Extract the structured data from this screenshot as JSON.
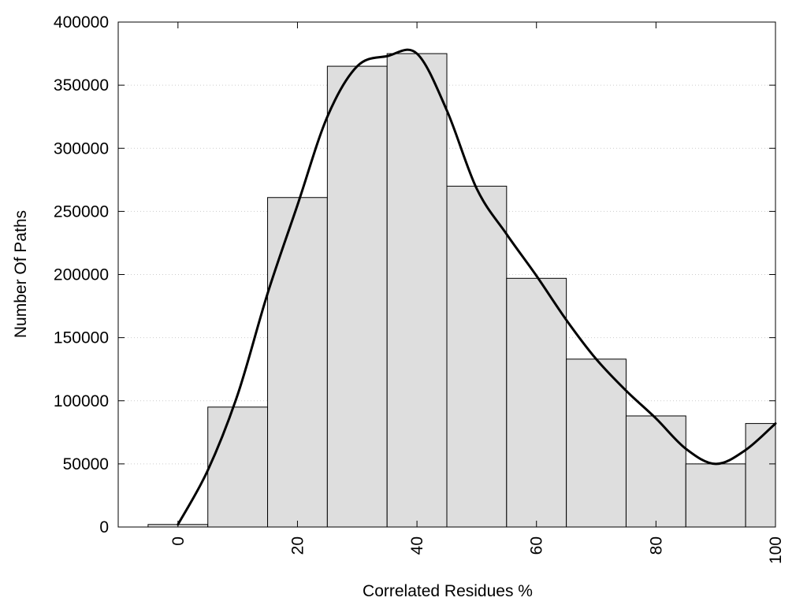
{
  "chart_data": {
    "type": "bar",
    "xlabel": "Correlated Residues %",
    "ylabel": "Number Of Paths",
    "xlim": [
      -10,
      100
    ],
    "ylim": [
      0,
      400000
    ],
    "x_ticks": [
      0,
      20,
      40,
      60,
      80,
      100
    ],
    "x_tick_labels": [
      "0",
      "20",
      "40",
      "60",
      "80",
      "100"
    ],
    "y_ticks": [
      0,
      50000,
      100000,
      150000,
      200000,
      250000,
      300000,
      350000,
      400000
    ],
    "y_tick_labels": [
      "0",
      "50000",
      "100000",
      "150000",
      "200000",
      "250000",
      "300000",
      "350000",
      "400000"
    ],
    "grid": "horizontal dotted",
    "bars": [
      {
        "x": 0,
        "value": 2000
      },
      {
        "x": 10,
        "value": 95000
      },
      {
        "x": 20,
        "value": 261000
      },
      {
        "x": 30,
        "value": 365000
      },
      {
        "x": 40,
        "value": 375000
      },
      {
        "x": 50,
        "value": 270000
      },
      {
        "x": 60,
        "value": 197000
      },
      {
        "x": 70,
        "value": 133000
      },
      {
        "x": 80,
        "value": 88000
      },
      {
        "x": 90,
        "value": 50000
      },
      {
        "x": 100,
        "value": 82000
      }
    ],
    "bin_width": 10,
    "curve": {
      "type": "smooth line",
      "points": [
        [
          0,
          2000
        ],
        [
          5,
          45000
        ],
        [
          10,
          105000
        ],
        [
          15,
          185000
        ],
        [
          20,
          255000
        ],
        [
          25,
          325000
        ],
        [
          30,
          365000
        ],
        [
          35,
          373000
        ],
        [
          40,
          375000
        ],
        [
          45,
          330000
        ],
        [
          50,
          268000
        ],
        [
          55,
          232000
        ],
        [
          60,
          199000
        ],
        [
          65,
          164000
        ],
        [
          70,
          133000
        ],
        [
          75,
          108000
        ],
        [
          80,
          86000
        ],
        [
          85,
          62000
        ],
        [
          90,
          50000
        ],
        [
          95,
          61000
        ],
        [
          100,
          82000
        ]
      ]
    },
    "colors": {
      "bar_fill": "#dedede",
      "bar_stroke": "#000000",
      "curve": "#000000",
      "grid": "#cccccc"
    }
  }
}
